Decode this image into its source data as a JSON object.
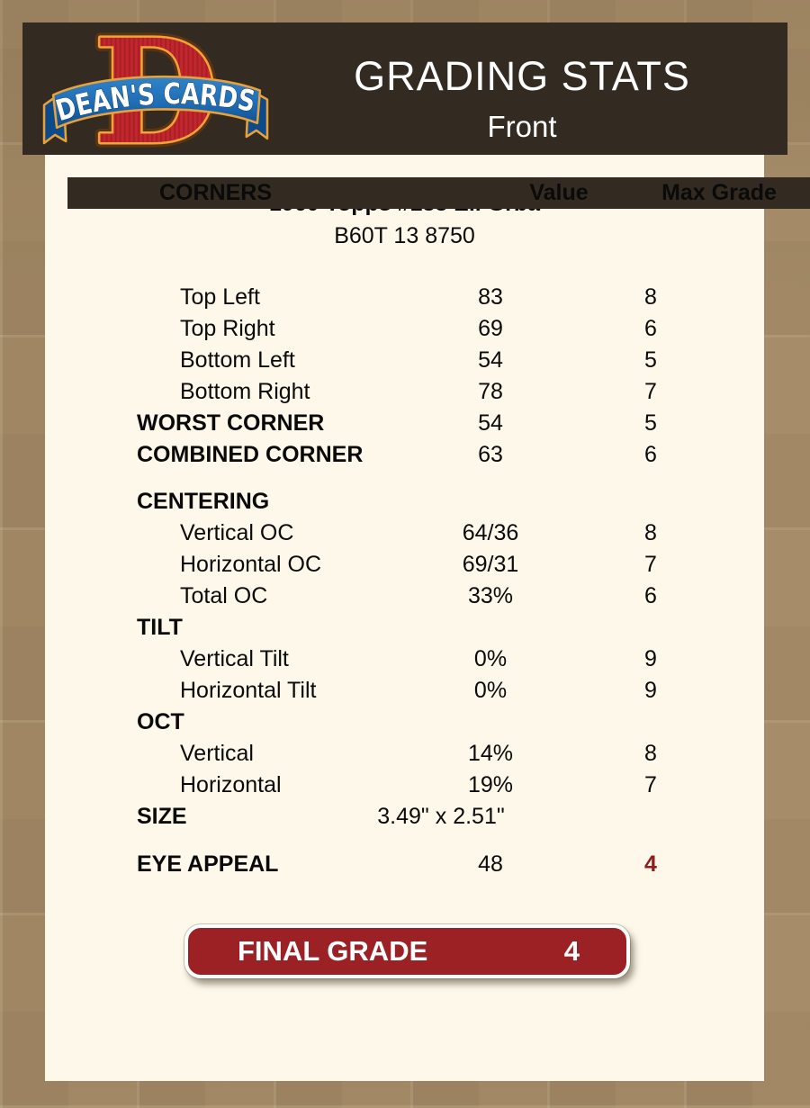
{
  "page": {
    "background_color": "#a68c68",
    "sheet_color": "#fdf8ea"
  },
  "header": {
    "background_color": "#332b21",
    "title": "GRADING STATS",
    "subtitle": "Front",
    "logo": {
      "brand_text": "DEAN'S CARDS",
      "monogram": "D",
      "colors": {
        "monogram_red": "#c1272d",
        "outline_orange": "#f2a338",
        "ribbon_blue": "#1f6cb4",
        "text_white": "#ffffff"
      }
    }
  },
  "card_info": {
    "title": "1960 Topps #183 Eli Grba",
    "code": "B60T 13 8750"
  },
  "grading_table": {
    "rows": [
      {
        "type": "header",
        "label": "CORNERS",
        "value": "Value",
        "max": "Max Grade"
      },
      {
        "type": "item",
        "label": "Top Left",
        "value": "83",
        "max": "8"
      },
      {
        "type": "item",
        "label": "Top Right",
        "value": "69",
        "max": "6"
      },
      {
        "type": "item",
        "label": "Bottom Left",
        "value": "54",
        "max": "5"
      },
      {
        "type": "item",
        "label": "Bottom Right",
        "value": "78",
        "max": "7"
      },
      {
        "type": "bold",
        "label": "WORST CORNER",
        "value": "54",
        "max": "5"
      },
      {
        "type": "bold",
        "label": "COMBINED CORNER",
        "value": "63",
        "max": "6"
      },
      {
        "type": "gap"
      },
      {
        "type": "section",
        "label": "CENTERING",
        "value": "",
        "max": ""
      },
      {
        "type": "item",
        "label": "Vertical OC",
        "value": "64/36",
        "max": "8"
      },
      {
        "type": "item",
        "label": "Horizontal OC",
        "value": "69/31",
        "max": "7"
      },
      {
        "type": "item",
        "label": "Total OC",
        "value": "33%",
        "max": "6"
      },
      {
        "type": "section",
        "label": "TILT",
        "value": "",
        "max": ""
      },
      {
        "type": "item",
        "label": "Vertical Tilt",
        "value": "0%",
        "max": "9"
      },
      {
        "type": "item",
        "label": "Horizontal Tilt",
        "value": "0%",
        "max": "9"
      },
      {
        "type": "section",
        "label": "OCT",
        "value": "",
        "max": ""
      },
      {
        "type": "item",
        "label": "Vertical",
        "value": "14%",
        "max": "8"
      },
      {
        "type": "item",
        "label": "Horizontal",
        "value": "19%",
        "max": "7"
      },
      {
        "type": "size",
        "label": "SIZE",
        "value": "3.49\" x 2.51\"",
        "max": ""
      },
      {
        "type": "gap2"
      },
      {
        "type": "bold",
        "label": "EYE APPEAL",
        "value": "48",
        "max": "4",
        "max_red": true
      }
    ],
    "eye_appeal_grade_color": "#8f1d1d"
  },
  "final_grade": {
    "label": "FINAL GRADE",
    "value": "4",
    "background_color": "#9b2125"
  }
}
